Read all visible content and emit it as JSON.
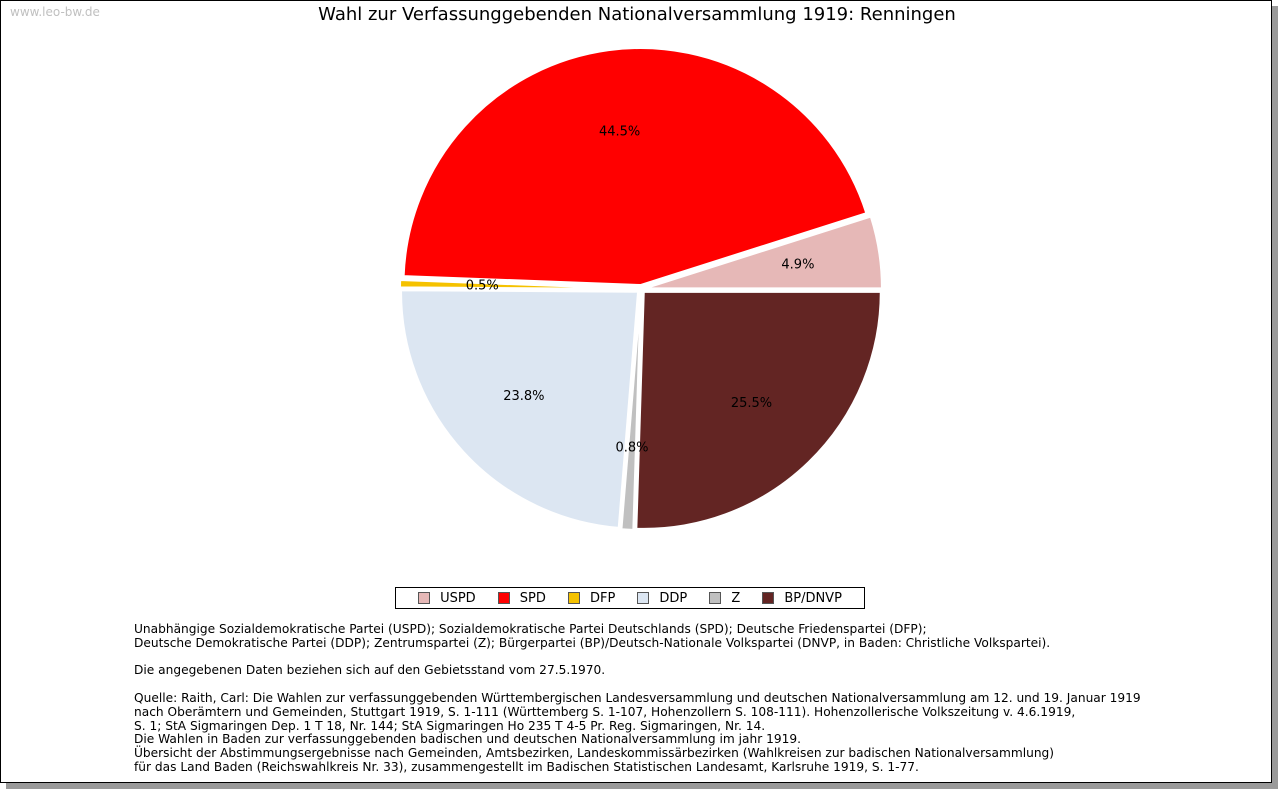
{
  "watermark": "www.leo-bw.de",
  "chart_data": {
    "type": "pie",
    "title": "Wahl zur Verfassunggebenden Nationalversammlung 1919: Renningen",
    "slices": [
      {
        "name": "USPD",
        "value": 4.9,
        "label": "4.9%",
        "color": "#e6b8b7"
      },
      {
        "name": "SPD",
        "value": 44.5,
        "label": "44.5%",
        "color": "#ff0000"
      },
      {
        "name": "DFP",
        "value": 0.5,
        "label": "0.5%",
        "color": "#f5c200"
      },
      {
        "name": "DDP",
        "value": 23.8,
        "label": "23.8%",
        "color": "#dce6f2"
      },
      {
        "name": "Z",
        "value": 0.8,
        "label": "0.8%",
        "color": "#c0c0c0"
      },
      {
        "name": "BP/DNVP",
        "value": 25.5,
        "label": "25.5%",
        "color": "#632523"
      }
    ],
    "legend_position": "bottom-center"
  },
  "notes": [
    "Unabhängige Sozialdemokratische Partei (USPD); Sozialdemokratische Partei Deutschlands (SPD); Deutsche Friedenspartei (DFP);",
    "Deutsche Demokratische Partei (DDP); Zentrumspartei (Z); Bürgerpartei (BP)/Deutsch-Nationale Volkspartei (DNVP, in Baden: Christliche Volkspartei).",
    "",
    "Die angegebenen Daten beziehen sich auf den Gebietsstand vom 27.5.1970.",
    "",
    "Quelle: Raith, Carl: Die Wahlen zur verfassunggebenden Württembergischen Landesversammlung und deutschen Nationalversammlung am 12. und 19. Januar 1919",
    "nach Oberämtern und Gemeinden, Stuttgart 1919, S. 1-111 (Württemberg S. 1-107, Hohenzollern S. 108-111). Hohenzollerische Volkszeitung v. 4.6.1919,",
    "S. 1; StA Sigmaringen Dep. 1 T 18, Nr. 144; StA Sigmaringen Ho 235 T 4-5 Pr. Reg. Sigmaringen, Nr. 14.",
    "Die Wahlen in Baden zur verfassunggebenden badischen und deutschen Nationalversammlung im jahr 1919.",
    "Übersicht der Abstimmungsergebnisse nach Gemeinden, Amtsbezirken, Landeskommissärbezirken (Wahlkreisen zur badischen Nationalversammlung)",
    "für das Land Baden (Reichswahlkreis Nr. 33), zusammengestellt im Badischen Statistischen Landesamt, Karlsruhe 1919, S. 1-77."
  ]
}
